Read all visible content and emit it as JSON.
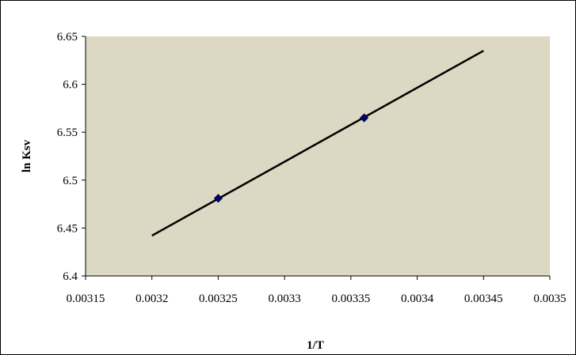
{
  "chart_data": {
    "type": "scatter",
    "title": "",
    "xlabel": "1/T",
    "ylabel": "ln Ksv",
    "xlim": [
      0.00315,
      0.0035
    ],
    "ylim": [
      6.4,
      6.65
    ],
    "x_ticks": [
      "0.00315",
      "0.0032",
      "0.00325",
      "0.0033",
      "0.00335",
      "0.0034",
      "0.00345",
      "0.0035"
    ],
    "y_ticks": [
      "6.4",
      "6.45",
      "6.5",
      "6.55",
      "6.6",
      "6.65"
    ],
    "grid": false,
    "legend": "none",
    "series": [
      {
        "values_x": [
          0.00325,
          0.00336
        ],
        "values_y": [
          6.481,
          6.565
        ],
        "marker": "diamond",
        "color": "#00007f"
      }
    ],
    "trendline": {
      "type": "linear",
      "x": [
        0.0032,
        0.00345
      ],
      "y": [
        6.442,
        6.635
      ],
      "color": "#000000"
    },
    "plot_area_color": "#ddd8c3"
  }
}
